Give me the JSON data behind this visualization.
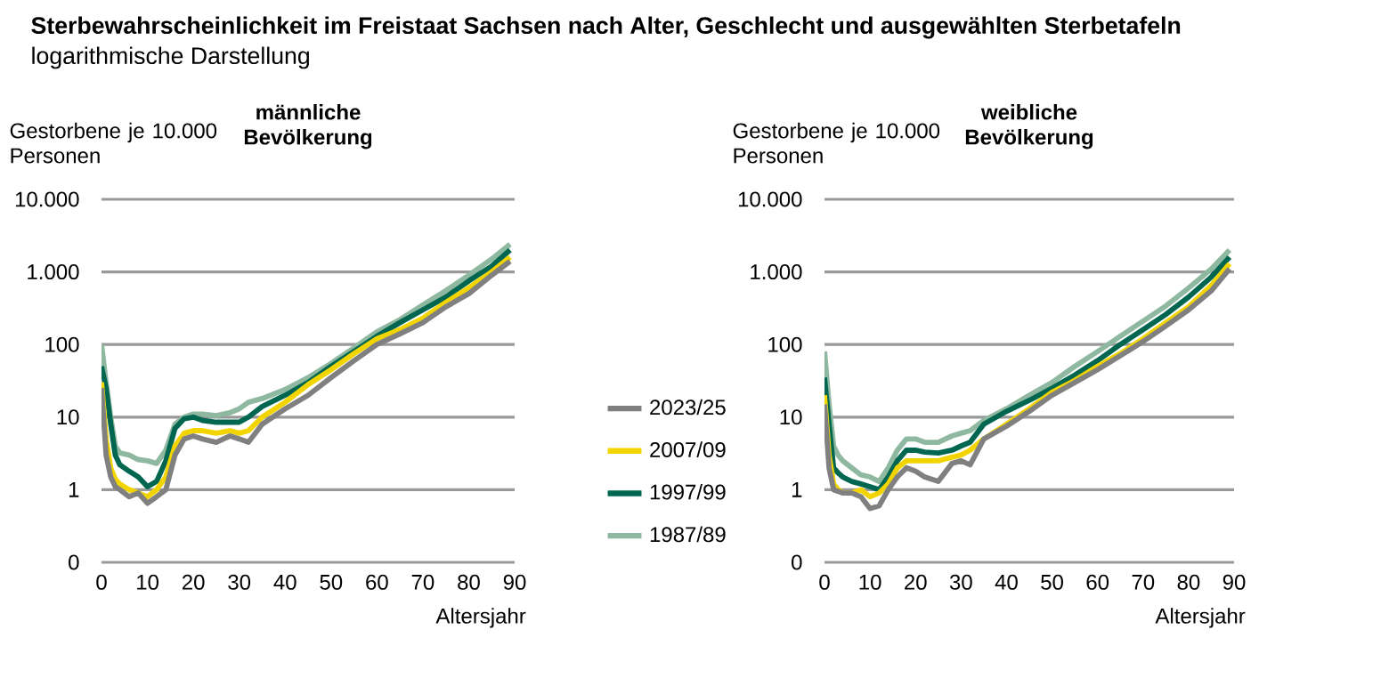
{
  "chart_data": [
    {
      "type": "line",
      "title": "männliche Bevölkerung",
      "ylabel": "Gestorbene je 10.000 Personen",
      "xlabel": "Altersjahr",
      "annotations": [
        "Sterbewahrscheinlichkeit im Freistaat Sachsen nach Alter, Geschlecht und ausgewählten Sterbetafeln",
        "logarithmische Darstellung"
      ],
      "x": [
        0,
        1,
        2,
        3,
        4,
        6,
        8,
        10,
        12,
        14,
        16,
        18,
        20,
        22,
        25,
        28,
        30,
        32,
        35,
        40,
        45,
        50,
        55,
        60,
        65,
        70,
        75,
        80,
        85,
        89
      ],
      "series": [
        {
          "name": "2023/25",
          "color": "#808080",
          "values": [
            25,
            3,
            1.5,
            1.1,
            1,
            0.8,
            0.9,
            0.65,
            0.8,
            1,
            3,
            5,
            5.5,
            5,
            4.5,
            5.5,
            5,
            4.5,
            8,
            13,
            20,
            35,
            60,
            100,
            140,
            200,
            330,
            500,
            900,
            1400
          ]
        },
        {
          "name": "2007/09",
          "color": "#f2d500",
          "values": [
            30,
            5,
            2,
            1.4,
            1.2,
            1,
            0.9,
            0.8,
            1,
            1.5,
            4,
            6,
            6.5,
            6.5,
            6,
            6.5,
            6,
            6.5,
            10,
            16,
            28,
            45,
            75,
            120,
            160,
            230,
            380,
            600,
            1000,
            1600
          ]
        },
        {
          "name": "1997/99",
          "color": "#00664f",
          "values": [
            50,
            25,
            8,
            3,
            2.2,
            1.8,
            1.5,
            1.1,
            1.3,
            2.5,
            7,
            9.5,
            10,
            9,
            8.5,
            8.5,
            8.5,
            10,
            14,
            20,
            30,
            50,
            80,
            130,
            200,
            300,
            450,
            750,
            1200,
            2000
          ]
        },
        {
          "name": "1987/89",
          "color": "#8fb8a0",
          "values": [
            100,
            30,
            10,
            4,
            3.2,
            3,
            2.6,
            2.5,
            2.3,
            3.5,
            8,
            10,
            11,
            11,
            10.5,
            11.5,
            13,
            16,
            18,
            24,
            35,
            55,
            90,
            150,
            220,
            350,
            550,
            900,
            1500,
            2400
          ]
        }
      ],
      "xlim": [
        0,
        90
      ],
      "xticks": [
        0,
        10,
        20,
        30,
        40,
        50,
        60,
        70,
        80,
        90
      ],
      "ylim": [
        0.1,
        10000
      ],
      "yticks": [
        {
          "value": 0.1,
          "label": "0"
        },
        1,
        10,
        100,
        {
          "value": 1000,
          "label": "1.000"
        },
        {
          "value": 10000,
          "label": "10.000"
        }
      ],
      "log": "y",
      "grid": "y",
      "legend": "right",
      "line_style": "solid"
    },
    {
      "type": "line",
      "title": "weibliche Bevölkerung",
      "ylabel": "Gestorbene je 10.000 Personen",
      "xlabel": "Altersjahr",
      "x": [
        0,
        1,
        2,
        3,
        4,
        6,
        8,
        10,
        12,
        14,
        16,
        18,
        20,
        22,
        25,
        28,
        30,
        32,
        35,
        40,
        45,
        50,
        55,
        60,
        65,
        70,
        75,
        80,
        85,
        89
      ],
      "series": [
        {
          "color": "#808080",
          "values": [
            15,
            2,
            1,
            0.95,
            0.9,
            0.9,
            0.8,
            0.55,
            0.6,
            1,
            1.5,
            2,
            1.8,
            1.5,
            1.3,
            2.3,
            2.5,
            2.2,
            5,
            7.5,
            12,
            20,
            30,
            45,
            70,
            110,
            180,
            300,
            550,
            1100
          ]
        },
        {
          "color": "#f2d500",
          "values": [
            20,
            3,
            1.2,
            1,
            0.9,
            0.9,
            1,
            0.8,
            0.9,
            1.2,
            2,
            2.5,
            2.5,
            2.5,
            2.5,
            2.8,
            3,
            3.5,
            5,
            8,
            13,
            22,
            32,
            50,
            75,
            120,
            200,
            330,
            650,
            1300
          ]
        },
        {
          "color": "#00664f",
          "values": [
            35,
            8,
            2,
            1.7,
            1.5,
            1.3,
            1.2,
            1.1,
            1,
            1.5,
            2.5,
            3.5,
            3.5,
            3.3,
            3.2,
            3.5,
            4,
            4.5,
            8,
            12,
            17,
            25,
            38,
            60,
            100,
            160,
            260,
            450,
            850,
            1600
          ]
        },
        {
          "color": "#8fb8a0",
          "values": [
            80,
            15,
            4,
            3,
            2.5,
            2,
            1.6,
            1.5,
            1.3,
            2,
            3.5,
            5,
            5,
            4.5,
            4.5,
            5.5,
            6,
            6.5,
            9,
            13,
            20,
            30,
            50,
            80,
            130,
            210,
            340,
            600,
            1100,
            2000
          ]
        }
      ],
      "xlim": [
        0,
        90
      ],
      "xticks": [
        0,
        10,
        20,
        30,
        40,
        50,
        60,
        70,
        80,
        90
      ],
      "ylim": [
        0.1,
        10000
      ],
      "yticks": [
        {
          "value": 0.1,
          "label": "0"
        },
        1,
        10,
        100,
        {
          "value": 1000,
          "label": "1.000"
        },
        {
          "value": 10000,
          "label": "10.000"
        }
      ],
      "log": "y",
      "grid": "y",
      "line_style": "solid"
    }
  ]
}
